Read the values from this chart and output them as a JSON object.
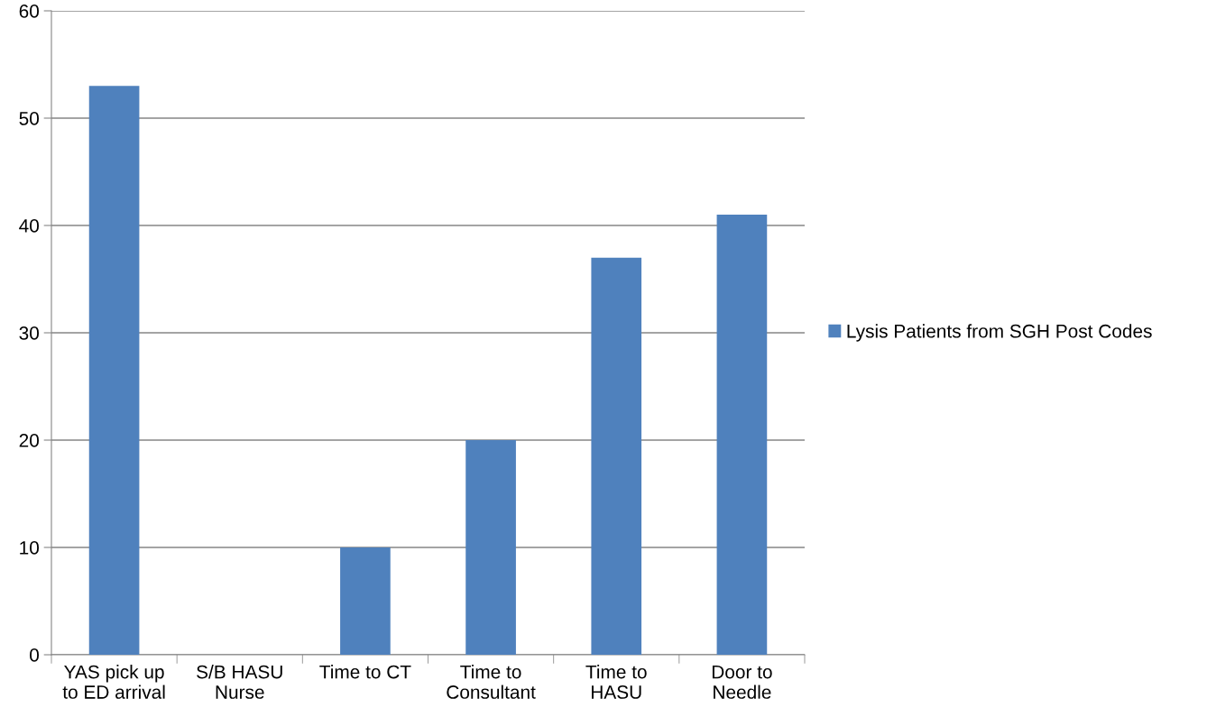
{
  "chart_data": {
    "type": "bar",
    "categories": [
      "YAS pick up\nto ED arrival",
      "S/B HASU\nNurse",
      "Time to CT",
      "Time to\nConsultant",
      "Time to\nHASU",
      "Door to\nNeedle"
    ],
    "series": [
      {
        "name": "Lysis Patients from SGH Post Codes",
        "color": "#4f81bd",
        "values": [
          53,
          0,
          10,
          20,
          37,
          41
        ]
      }
    ],
    "ylim": [
      0,
      60
    ],
    "yticks": [
      0,
      10,
      20,
      30,
      40,
      50,
      60
    ],
    "grid": "y",
    "legend": "right"
  }
}
